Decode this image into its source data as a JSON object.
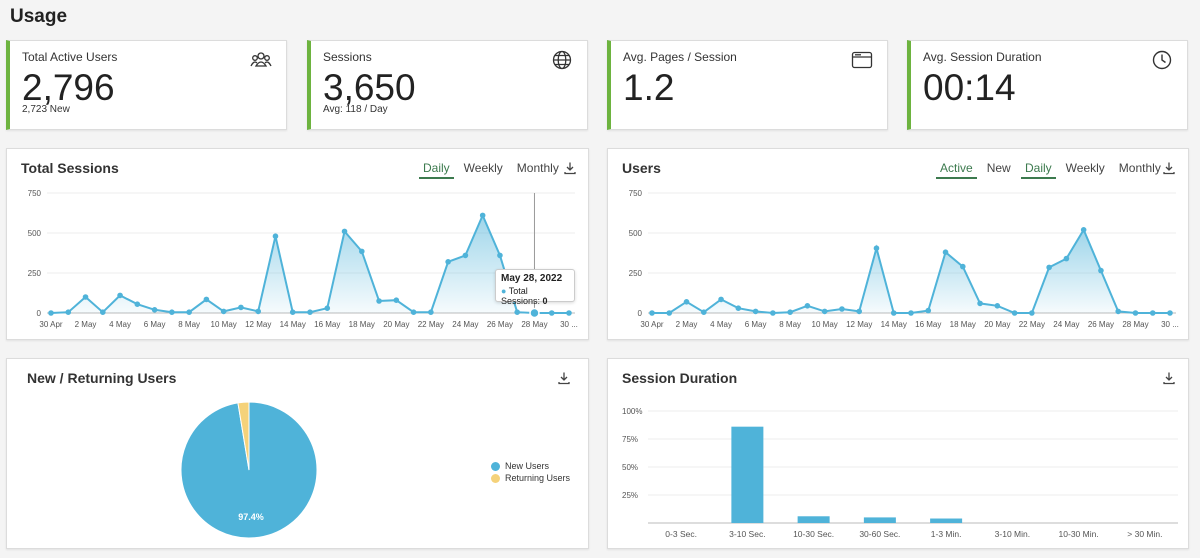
{
  "page": {
    "title": "Usage"
  },
  "kpis": [
    {
      "label": "Total Active Users",
      "value": "2,796",
      "sub": "2,723 New",
      "icon": "users-icon"
    },
    {
      "label": "Sessions",
      "value": "3,650",
      "sub": "Avg: 118 / Day",
      "icon": "globe-icon"
    },
    {
      "label": "Avg. Pages / Session",
      "value": "1.2",
      "sub": "",
      "icon": "browser-window-icon"
    },
    {
      "label": "Avg. Session Duration",
      "value": "00:14",
      "sub": "",
      "icon": "clock-icon"
    }
  ],
  "total_sessions": {
    "title": "Total Sessions",
    "tabs": [
      "Daily",
      "Weekly",
      "Monthly"
    ],
    "active_tab": "Daily",
    "tooltip": {
      "date": "May 28, 2022",
      "label": "Total Sessions:",
      "value": "0"
    }
  },
  "users": {
    "title": "Users",
    "mode_tabs": [
      "Active",
      "New"
    ],
    "active_mode": "Active",
    "tabs": [
      "Daily",
      "Weekly",
      "Monthly"
    ],
    "active_tab": "Daily"
  },
  "new_returning": {
    "title": "New / Returning Users",
    "legend": [
      "New Users",
      "Returning Users"
    ],
    "slice_label": "97.4%"
  },
  "session_duration": {
    "title": "Session Duration"
  },
  "colors": {
    "accent": "#6db33f",
    "series": "#4fb3d9",
    "returning": "#f5d27a",
    "tab_active": "#3c7a4e"
  },
  "chart_data": [
    {
      "type": "area",
      "title": "Total Sessions",
      "x": [
        "30 Apr",
        "1 May",
        "2 May",
        "3 May",
        "4 May",
        "5 May",
        "6 May",
        "7 May",
        "8 May",
        "9 May",
        "10 May",
        "11 May",
        "12 May",
        "13 May",
        "14 May",
        "15 May",
        "16 May",
        "17 May",
        "18 May",
        "19 May",
        "20 May",
        "21 May",
        "22 May",
        "23 May",
        "24 May",
        "25 May",
        "26 May",
        "27 May",
        "28 May",
        "29 May",
        "30 May"
      ],
      "x_tick_labels": [
        "30 Apr",
        "2 May",
        "4 May",
        "6 May",
        "8 May",
        "10 May",
        "12 May",
        "14 May",
        "16 May",
        "18 May",
        "20 May",
        "22 May",
        "24 May",
        "26 May",
        "28 May",
        "30 ..."
      ],
      "series": [
        {
          "values": [
            0,
            5,
            100,
            5,
            110,
            55,
            20,
            5,
            5,
            85,
            10,
            35,
            10,
            480,
            5,
            5,
            30,
            510,
            385,
            75,
            80,
            5,
            5,
            320,
            360,
            610,
            360,
            5,
            0,
            0,
            0
          ]
        }
      ],
      "y_ticks": [
        0,
        250,
        500,
        750
      ],
      "ylim": [
        0,
        750
      ]
    },
    {
      "type": "area",
      "title": "Users",
      "x": [
        "30 Apr",
        "1 May",
        "2 May",
        "3 May",
        "4 May",
        "5 May",
        "6 May",
        "7 May",
        "8 May",
        "9 May",
        "10 May",
        "11 May",
        "12 May",
        "13 May",
        "14 May",
        "15 May",
        "16 May",
        "17 May",
        "18 May",
        "19 May",
        "20 May",
        "21 May",
        "22 May",
        "23 May",
        "24 May",
        "25 May",
        "26 May",
        "27 May",
        "28 May",
        "29 May",
        "30 May"
      ],
      "x_tick_labels": [
        "30 Apr",
        "2 May",
        "4 May",
        "6 May",
        "8 May",
        "10 May",
        "12 May",
        "14 May",
        "16 May",
        "18 May",
        "20 May",
        "22 May",
        "24 May",
        "26 May",
        "28 May",
        "30 ..."
      ],
      "series": [
        {
          "values": [
            0,
            0,
            70,
            5,
            85,
            30,
            10,
            0,
            5,
            45,
            10,
            25,
            10,
            405,
            0,
            0,
            15,
            380,
            290,
            60,
            45,
            0,
            0,
            285,
            340,
            520,
            265,
            10,
            0,
            0,
            0
          ]
        }
      ],
      "y_ticks": [
        0,
        250,
        500,
        750
      ],
      "ylim": [
        0,
        750
      ]
    },
    {
      "type": "pie",
      "title": "New / Returning Users",
      "labels": [
        "New Users",
        "Returning Users"
      ],
      "values": [
        97.4,
        2.6
      ],
      "legend": "right"
    },
    {
      "type": "bar",
      "title": "Session Duration",
      "categories": [
        "0-3 Sec.",
        "3-10 Sec.",
        "10-30 Sec.",
        "30-60 Sec.",
        "1-3 Min.",
        "3-10 Min.",
        "10-30 Min.",
        "> 30 Min."
      ],
      "values": [
        0,
        86,
        6,
        5,
        4,
        0,
        0,
        0
      ],
      "y_ticks": [
        "25%",
        "50%",
        "75%",
        "100%"
      ],
      "ylim": [
        0,
        100
      ]
    }
  ]
}
